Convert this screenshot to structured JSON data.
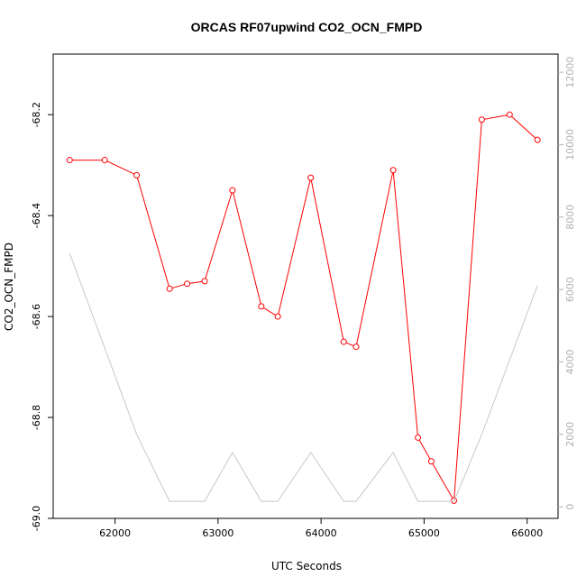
{
  "chart_data": {
    "type": "line",
    "title": "ORCAS RF07upwind CO2_OCN_FMPD",
    "xlabel": "UTC Seconds",
    "ylabel": "CO2_OCN_FMPD",
    "xlim": [
      61400,
      66300
    ],
    "ylim": [
      -69.0,
      -68.08
    ],
    "y2lim": [
      -320,
      12500
    ],
    "grid": false,
    "x_ticks": [
      62000,
      63000,
      64000,
      65000,
      66000
    ],
    "y_ticks": [
      -69.0,
      -68.8,
      -68.6,
      -68.4,
      -68.2
    ],
    "y_tick_labels": [
      "-69.0",
      "-68.8",
      "-68.6",
      "-68.4",
      "-68.2"
    ],
    "y2_ticks": [
      0,
      2000,
      4000,
      6000,
      8000,
      10000,
      12000
    ],
    "series": [
      {
        "axis": "left",
        "color": "#ff0000",
        "marker": "open-circle",
        "x": [
          61560,
          61900,
          62210,
          62530,
          62700,
          62870,
          63140,
          63420,
          63580,
          63900,
          64220,
          64340,
          64700,
          64940,
          65070,
          65290,
          65560,
          65830,
          66100
        ],
        "y": [
          -68.29,
          -68.29,
          -68.32,
          -68.545,
          -68.535,
          -68.53,
          -68.35,
          -68.58,
          -68.6,
          -68.325,
          -68.65,
          -68.66,
          -68.31,
          -68.84,
          -68.887,
          -68.965,
          -68.21,
          -68.2,
          -68.25
        ]
      },
      {
        "axis": "right",
        "color": "#c8c8c8",
        "marker": "none",
        "x": [
          61560,
          62210,
          62530,
          62870,
          63140,
          63420,
          63580,
          63900,
          64220,
          64340,
          64700,
          64940,
          65290,
          65560,
          66100
        ],
        "y": [
          7000,
          2000,
          150,
          150,
          1500,
          150,
          150,
          1500,
          150,
          150,
          1500,
          150,
          150,
          2000,
          6100
        ]
      }
    ]
  }
}
